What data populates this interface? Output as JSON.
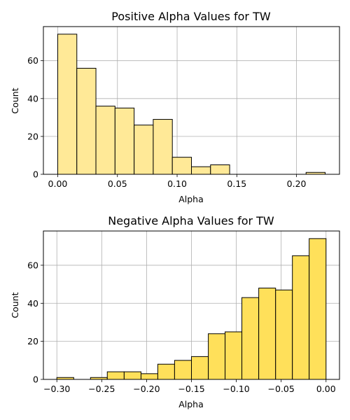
{
  "chart_data": [
    {
      "type": "bar",
      "title": "Positive Alpha Values for TW",
      "xlabel": "Alpha",
      "ylabel": "Count",
      "color": "#ffe997",
      "edge_color": "#000000",
      "grid": true,
      "xlim": [
        -0.012,
        0.236
      ],
      "ylim": [
        0,
        78
      ],
      "xticks": [
        0.0,
        0.05,
        0.1,
        0.15,
        0.2
      ],
      "xtick_labels": [
        "0.00",
        "0.05",
        "0.10",
        "0.15",
        "0.20"
      ],
      "yticks": [
        0,
        20,
        40,
        60
      ],
      "ytick_labels": [
        "0",
        "20",
        "40",
        "60"
      ],
      "bins": [
        {
          "x0": 0.0,
          "x1": 0.016,
          "value": 74
        },
        {
          "x0": 0.016,
          "x1": 0.032,
          "value": 56
        },
        {
          "x0": 0.032,
          "x1": 0.048,
          "value": 36
        },
        {
          "x0": 0.048,
          "x1": 0.064,
          "value": 35
        },
        {
          "x0": 0.064,
          "x1": 0.08,
          "value": 26
        },
        {
          "x0": 0.08,
          "x1": 0.096,
          "value": 29
        },
        {
          "x0": 0.096,
          "x1": 0.112,
          "value": 9
        },
        {
          "x0": 0.112,
          "x1": 0.128,
          "value": 4
        },
        {
          "x0": 0.128,
          "x1": 0.144,
          "value": 5
        },
        {
          "x0": 0.144,
          "x1": 0.16,
          "value": 0
        },
        {
          "x0": 0.16,
          "x1": 0.176,
          "value": 0
        },
        {
          "x0": 0.176,
          "x1": 0.192,
          "value": 0
        },
        {
          "x0": 0.192,
          "x1": 0.208,
          "value": 0
        },
        {
          "x0": 0.208,
          "x1": 0.224,
          "value": 1
        }
      ]
    },
    {
      "type": "bar",
      "title": "Negative Alpha Values for TW",
      "xlabel": "Alpha",
      "ylabel": "Count",
      "color": "#ffe05a",
      "edge_color": "#000000",
      "grid": true,
      "xlim": [
        -0.315,
        0.015
      ],
      "ylim": [
        0,
        78
      ],
      "xticks": [
        -0.3,
        -0.25,
        -0.2,
        -0.15,
        -0.1,
        -0.05,
        0.0
      ],
      "xtick_labels": [
        "−0.30",
        "−0.25",
        "−0.20",
        "−0.15",
        "−0.10",
        "−0.05",
        "0.00"
      ],
      "yticks": [
        0,
        20,
        40,
        60
      ],
      "ytick_labels": [
        "0",
        "20",
        "40",
        "60"
      ],
      "bins": [
        {
          "x0": -0.3,
          "x1": -0.2812,
          "value": 1
        },
        {
          "x0": -0.2812,
          "x1": -0.2625,
          "value": 0
        },
        {
          "x0": -0.2625,
          "x1": -0.2438,
          "value": 1
        },
        {
          "x0": -0.2438,
          "x1": -0.225,
          "value": 4
        },
        {
          "x0": -0.225,
          "x1": -0.2062,
          "value": 4
        },
        {
          "x0": -0.2062,
          "x1": -0.1875,
          "value": 3
        },
        {
          "x0": -0.1875,
          "x1": -0.1688,
          "value": 8
        },
        {
          "x0": -0.1688,
          "x1": -0.15,
          "value": 10
        },
        {
          "x0": -0.15,
          "x1": -0.1312,
          "value": 12
        },
        {
          "x0": -0.1312,
          "x1": -0.1125,
          "value": 24
        },
        {
          "x0": -0.1125,
          "x1": -0.0938,
          "value": 25
        },
        {
          "x0": -0.0938,
          "x1": -0.075,
          "value": 43
        },
        {
          "x0": -0.075,
          "x1": -0.0562,
          "value": 48
        },
        {
          "x0": -0.0562,
          "x1": -0.0375,
          "value": 47
        },
        {
          "x0": -0.0375,
          "x1": -0.0188,
          "value": 65
        },
        {
          "x0": -0.0188,
          "x1": 0.0,
          "value": 74
        }
      ]
    }
  ]
}
